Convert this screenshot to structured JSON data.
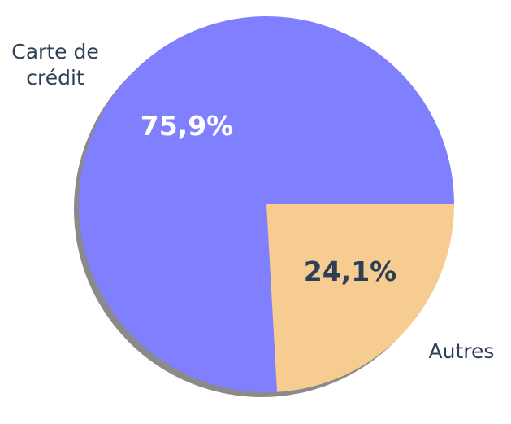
{
  "chart_data": {
    "type": "pie",
    "categories": [
      "Carte de crédit",
      "Autres"
    ],
    "values": [
      75.9,
      24.1
    ],
    "value_labels": [
      "75,9%",
      "24,1%"
    ],
    "category_labels": [
      [
        "Carte de",
        "crédit"
      ],
      [
        "Autres"
      ]
    ],
    "colors": [
      "#8080ff",
      "#f7cc91"
    ],
    "value_label_colors": [
      "#ffffff",
      "#2e3f56"
    ],
    "label_color": "#2e3f56",
    "shadow_color": "#8a8a8a",
    "title": "",
    "legend": "none"
  }
}
